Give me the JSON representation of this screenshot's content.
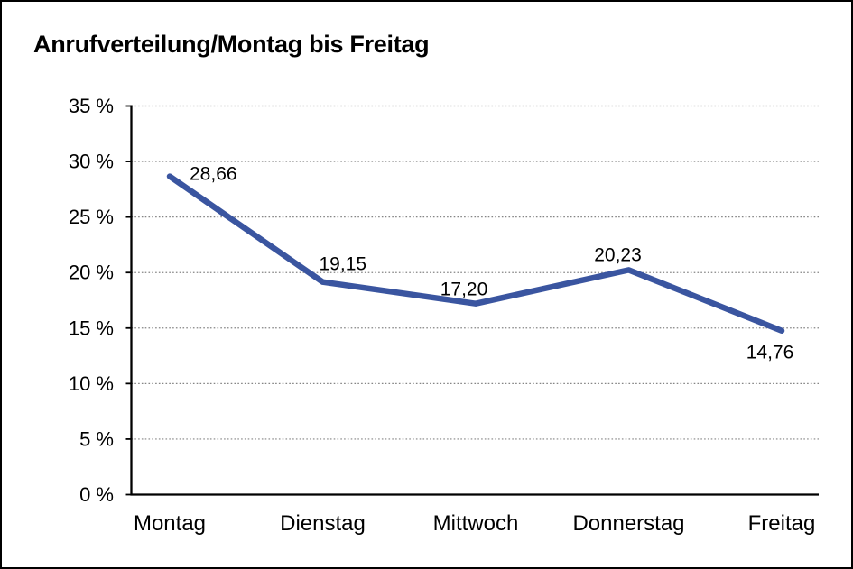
{
  "chart_data": {
    "type": "line",
    "title": "Anrufverteilung/Montag bis Freitag",
    "categories": [
      "Montag",
      "Dienstag",
      "Mittwoch",
      "Donnerstag",
      "Freitag"
    ],
    "values": [
      28.66,
      19.15,
      17.2,
      20.23,
      14.76
    ],
    "value_labels": [
      "28,66",
      "19,15",
      "17,20",
      "20,23",
      "14,76"
    ],
    "xlabel": "",
    "ylabel": "",
    "ylim": [
      0,
      35
    ],
    "ytick_step": 5,
    "ytick_labels_top_to_bottom": [
      "35 %",
      "30 %",
      "25 %",
      "20 %",
      "15 %",
      "10 %",
      "5 %",
      "0 %"
    ],
    "grid": "horizontal-dotted",
    "legend": "none",
    "colors": {
      "line": "#3A55A0",
      "grid": "#858585",
      "axis": "#000000",
      "text": "#000000",
      "background": "#FFFFFF",
      "frame_border": "#000000"
    }
  }
}
